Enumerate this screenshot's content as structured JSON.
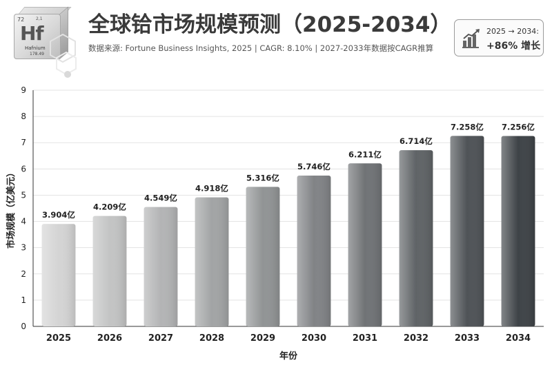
{
  "header": {
    "title": "全球铪市场规模预测（2025-2034）",
    "subtitle": "数据来源: Fortune Business Insights, 2025  |  CAGR: 8.10%  |  2027-2033年数据按CAGR推算"
  },
  "element_badge": {
    "atomic_number": "72",
    "oxidation": "2,1",
    "symbol": "Hf",
    "name": "Hafnium",
    "mass": "178.49",
    "icon": "element-cube-icon"
  },
  "growth_box": {
    "range_label": "2025 → 2034:",
    "growth_label": "+86% 增长",
    "icon": "trend-chart-icon"
  },
  "chart_data": {
    "type": "bar",
    "title": "全球铪市场规模预测（2025-2034）",
    "xlabel": "年份",
    "ylabel": "市场规模（亿美元）",
    "categories": [
      "2025",
      "2026",
      "2027",
      "2028",
      "2029",
      "2030",
      "2031",
      "2032",
      "2033",
      "2034"
    ],
    "values": [
      3.904,
      4.209,
      4.549,
      4.918,
      5.316,
      5.746,
      6.211,
      6.714,
      7.258,
      7.256
    ],
    "data_labels": [
      "3.904亿",
      "4.209亿",
      "4.549亿",
      "4.918亿",
      "5.316亿",
      "5.746亿",
      "6.211亿",
      "6.714亿",
      "7.258亿",
      "7.256亿"
    ],
    "ylim": [
      0,
      9
    ],
    "yticks": [
      0,
      1,
      2,
      3,
      4,
      5,
      6,
      7,
      8,
      9
    ],
    "grid": true,
    "colors": {
      "bar_light": "#d4d4d4",
      "bar_dark": "#3e4347",
      "grid": "#e3e3e3"
    }
  }
}
